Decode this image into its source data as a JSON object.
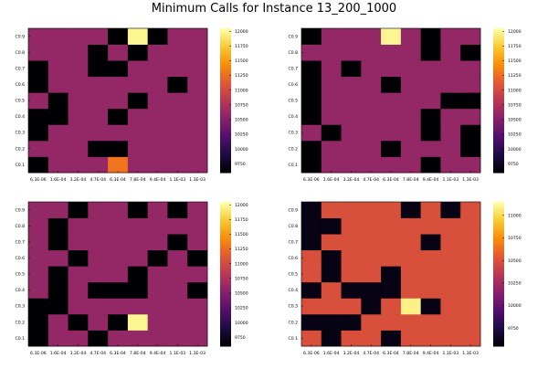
{
  "title": "Minimum Calls for Instance 13_200_1000",
  "chart_data": [
    {
      "type": "heatmap",
      "title": "",
      "xlabel": "",
      "ylabel": "",
      "x_tick_labels": [
        "6.3E-06",
        "1.6E-04",
        "3.2E-04",
        "4.7E-04",
        "6.3E-04",
        "7.8E-04",
        "9.4E-04",
        "1.1E-03",
        "1.3E-03"
      ],
      "y_tick_labels": [
        "C0.1",
        "C0.2",
        "C0.3",
        "C0.4",
        "C0.5",
        "C0.6",
        "C0.7",
        "C0.8",
        "C0.9"
      ],
      "colorbar_ticks": [
        9750,
        10000,
        10250,
        10500,
        10750,
        11000,
        11250,
        11500,
        11750,
        12000
      ],
      "colorbar_range": [
        9600,
        12050
      ],
      "colormap": "inferno",
      "values": [
        [
          9600,
          10600,
          10600,
          10600,
          11300,
          10600,
          10600,
          10600,
          10600
        ],
        [
          10600,
          10600,
          10600,
          9600,
          9600,
          10600,
          10600,
          10600,
          10600
        ],
        [
          9600,
          10600,
          10600,
          10600,
          10600,
          10600,
          10600,
          10600,
          10600
        ],
        [
          9600,
          9600,
          10600,
          10600,
          9600,
          10600,
          10600,
          10600,
          10600
        ],
        [
          10600,
          9600,
          10600,
          10600,
          10600,
          9600,
          10600,
          10600,
          10600
        ],
        [
          9600,
          10600,
          10600,
          10600,
          10600,
          10600,
          10600,
          9600,
          10600
        ],
        [
          9600,
          10600,
          10600,
          9600,
          9600,
          10600,
          10600,
          10600,
          10600
        ],
        [
          10600,
          10600,
          10600,
          9600,
          10600,
          9600,
          10600,
          10600,
          10600
        ],
        [
          10600,
          10600,
          10600,
          10600,
          9600,
          12000,
          9600,
          10600,
          10600
        ]
      ]
    },
    {
      "type": "heatmap",
      "title": "",
      "xlabel": "",
      "ylabel": "",
      "x_tick_labels": [
        "6.3E-06",
        "1.6E-04",
        "3.2E-04",
        "4.7E-04",
        "6.3E-04",
        "7.8E-04",
        "9.4E-04",
        "1.1E-03",
        "1.3E-03"
      ],
      "y_tick_labels": [
        "C0.1",
        "C0.2",
        "C0.3",
        "C0.4",
        "C0.5",
        "C0.6",
        "C0.7",
        "C0.8",
        "C0.9"
      ],
      "colorbar_ticks": [
        9750,
        10000,
        10250,
        10500,
        10750,
        11000,
        11250,
        11500,
        11750,
        12000
      ],
      "colorbar_range": [
        9600,
        12050
      ],
      "colormap": "inferno",
      "values": [
        [
          9600,
          10600,
          10600,
          10600,
          10600,
          10600,
          9600,
          10600,
          10600
        ],
        [
          9600,
          10600,
          10600,
          10600,
          9600,
          10600,
          10600,
          10600,
          9600
        ],
        [
          10600,
          9600,
          10600,
          10600,
          10600,
          10600,
          9600,
          10600,
          9600
        ],
        [
          9600,
          10600,
          10600,
          10600,
          10600,
          10600,
          9600,
          10600,
          10600
        ],
        [
          9600,
          10600,
          10600,
          10600,
          10600,
          10600,
          10600,
          9600,
          9600
        ],
        [
          9600,
          10600,
          10600,
          10600,
          9600,
          10600,
          10600,
          10600,
          10600
        ],
        [
          9600,
          10600,
          9600,
          10600,
          10600,
          10600,
          10600,
          10600,
          10600
        ],
        [
          10600,
          10600,
          10600,
          10600,
          10600,
          10600,
          9600,
          10600,
          9600
        ],
        [
          9600,
          10600,
          10600,
          10600,
          12000,
          10600,
          9600,
          10600,
          10600
        ]
      ]
    },
    {
      "type": "heatmap",
      "title": "",
      "xlabel": "",
      "ylabel": "",
      "x_tick_labels": [
        "6.3E-06",
        "1.6E-04",
        "3.2E-04",
        "4.7E-04",
        "6.3E-04",
        "7.8E-04",
        "9.4E-04",
        "1.1E-03",
        "1.3E-03"
      ],
      "y_tick_labels": [
        "C0.1",
        "C0.2",
        "C0.3",
        "C0.4",
        "C0.5",
        "C0.6",
        "C0.7",
        "C0.8",
        "C0.9"
      ],
      "colorbar_ticks": [
        9750,
        10000,
        10250,
        10500,
        10750,
        11000,
        11250,
        11500,
        11750,
        12000
      ],
      "colorbar_range": [
        9600,
        12050
      ],
      "colormap": "inferno",
      "values": [
        [
          9600,
          10600,
          10600,
          9600,
          10600,
          10600,
          10600,
          10600,
          10600
        ],
        [
          9600,
          10600,
          9600,
          10600,
          9600,
          12000,
          10600,
          10600,
          10600
        ],
        [
          9600,
          9600,
          10600,
          10600,
          10600,
          10600,
          10600,
          10600,
          10600
        ],
        [
          10600,
          9600,
          10600,
          9600,
          9600,
          9600,
          10600,
          10600,
          9600
        ],
        [
          10600,
          9600,
          10600,
          10600,
          10600,
          9600,
          10600,
          10600,
          10600
        ],
        [
          10600,
          10600,
          9600,
          10600,
          10600,
          10600,
          9600,
          10600,
          9600
        ],
        [
          10600,
          9600,
          10600,
          10600,
          10600,
          10600,
          10600,
          9600,
          10600
        ],
        [
          10600,
          9600,
          10600,
          10600,
          10600,
          10600,
          10600,
          10600,
          10600
        ],
        [
          10600,
          10600,
          9600,
          10600,
          10600,
          9600,
          10600,
          9600,
          10600
        ]
      ]
    },
    {
      "type": "heatmap",
      "title": "",
      "xlabel": "",
      "ylabel": "",
      "x_tick_labels": [
        "6.3E-06",
        "1.6E-04",
        "3.2E-04",
        "4.7E-04",
        "6.3E-04",
        "7.8E-04",
        "9.4E-04",
        "1.1E-03",
        "1.3E-03"
      ],
      "y_tick_labels": [
        "C0.1",
        "C0.2",
        "C0.3",
        "C0.4",
        "C0.5",
        "C0.6",
        "C0.7",
        "C0.8",
        "C0.9"
      ],
      "colorbar_ticks": [
        9750,
        10000,
        10250,
        10500,
        10750,
        11000
      ],
      "colorbar_range": [
        9550,
        11150
      ],
      "colormap": "inferno",
      "values": [
        [
          10500,
          9600,
          10500,
          10500,
          9600,
          10500,
          10500,
          10500,
          10500
        ],
        [
          9600,
          9600,
          9600,
          10500,
          10500,
          10500,
          10500,
          10500,
          10500
        ],
        [
          10500,
          10500,
          10500,
          9600,
          10500,
          11100,
          9600,
          10500,
          10500
        ],
        [
          9600,
          10500,
          9600,
          9600,
          9600,
          10500,
          10500,
          10500,
          10500
        ],
        [
          10500,
          9600,
          10500,
          10500,
          9600,
          10500,
          10500,
          10500,
          10500
        ],
        [
          10500,
          9600,
          10500,
          10500,
          10500,
          10500,
          10500,
          10500,
          10500
        ],
        [
          9600,
          10500,
          10500,
          10500,
          10500,
          10500,
          9600,
          10500,
          10500
        ],
        [
          9600,
          9600,
          10500,
          10500,
          10500,
          10500,
          10500,
          10500,
          10500
        ],
        [
          9600,
          10500,
          10500,
          10500,
          10500,
          9600,
          10500,
          9600,
          10500
        ]
      ]
    }
  ]
}
